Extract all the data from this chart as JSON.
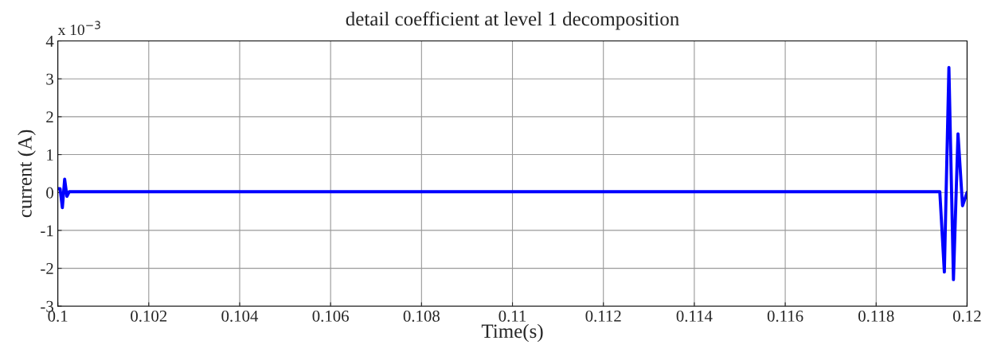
{
  "chart_data": {
    "type": "line",
    "title": "detail coefficient at level 1 decomposition",
    "xlabel": "Time(s)",
    "ylabel": "current (A)",
    "annotations": [
      "x 10$^{−3}$"
    ],
    "series": [
      {
        "color": "#0000ff",
        "x": [
          0.1,
          0.10005,
          0.1001,
          0.10015,
          0.1002,
          0.10025,
          0.101,
          0.102,
          0.103,
          0.104,
          0.105,
          0.106,
          0.107,
          0.108,
          0.109,
          0.11,
          0.111,
          0.112,
          0.113,
          0.114,
          0.115,
          0.116,
          0.117,
          0.118,
          0.119,
          0.1194,
          0.1195,
          0.1196,
          0.1197,
          0.1198,
          0.1199,
          0.12
        ],
        "values": [
          0.1,
          0.1,
          -0.4,
          0.35,
          -0.1,
          0.02,
          0.02,
          0.02,
          0.02,
          0.02,
          0.02,
          0.02,
          0.02,
          0.02,
          0.02,
          0.02,
          0.02,
          0.02,
          0.02,
          0.02,
          0.02,
          0.02,
          0.02,
          0.02,
          0.02,
          0.02,
          -2.1,
          3.3,
          -2.3,
          1.55,
          -0.35,
          0.0
        ]
      }
    ],
    "xlim": [
      0.1,
      0.12
    ],
    "xticks": [
      0.1,
      0.102,
      0.104,
      0.106,
      0.108,
      0.11,
      0.112,
      0.114,
      0.116,
      0.118,
      0.12
    ],
    "ylim": [
      -3,
      4
    ],
    "yticks": [
      -3,
      -2,
      -1,
      0,
      1,
      2,
      3,
      4
    ],
    "grid": true,
    "line_style": "solid",
    "marker": "none",
    "legend": false
  }
}
